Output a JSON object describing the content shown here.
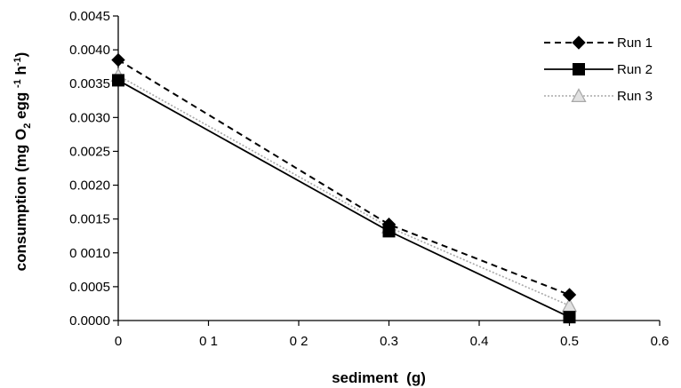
{
  "chart_data": {
    "type": "line",
    "xlabel": "sediment  (g)",
    "ylabel_parts": {
      "prefix": "consumption (mg O",
      "sub": "2",
      "mid": " egg ",
      "sup1": "-1",
      "h": " h",
      "sup2": "-1",
      "suffix": ")"
    },
    "xlim": [
      0,
      0.6
    ],
    "ylim": [
      0,
      0.0045
    ],
    "x_ticks": [
      0,
      0.1,
      0.2,
      0.3,
      0.4,
      0.5,
      0.6
    ],
    "x_tick_labels": [
      "0",
      "0 1",
      "0 2",
      "0.3",
      "0.4",
      "0.5",
      "0.6"
    ],
    "y_ticks": [
      0,
      0.0005,
      0.001,
      0.0015,
      0.002,
      0.0025,
      0.003,
      0.0035,
      0.004,
      0.0045
    ],
    "y_tick_labels": [
      "0.0000",
      "0.0005",
      "0 0010",
      "0.0015",
      "0.0020",
      "0.0025",
      "0.0030",
      "0.0035",
      "0.0040",
      "0.0045"
    ],
    "grid": false,
    "legend_position": "top-right",
    "series": [
      {
        "name": "Run 1",
        "x": [
          0,
          0.3,
          0.5
        ],
        "values": [
          0.00385,
          0.00142,
          0.00038
        ],
        "marker": "diamond",
        "line_style": "dashed",
        "color": "#000000"
      },
      {
        "name": "Run 2",
        "x": [
          0,
          0.3,
          0.5
        ],
        "values": [
          0.00355,
          0.00132,
          5e-05
        ],
        "marker": "square",
        "line_style": "solid",
        "color": "#000000"
      },
      {
        "name": "Run 3",
        "x": [
          0,
          0.3,
          0.5
        ],
        "values": [
          0.00362,
          0.00138,
          0.00022
        ],
        "marker": "triangle",
        "line_style": "dotted",
        "color": "#a8a8a8"
      }
    ]
  }
}
